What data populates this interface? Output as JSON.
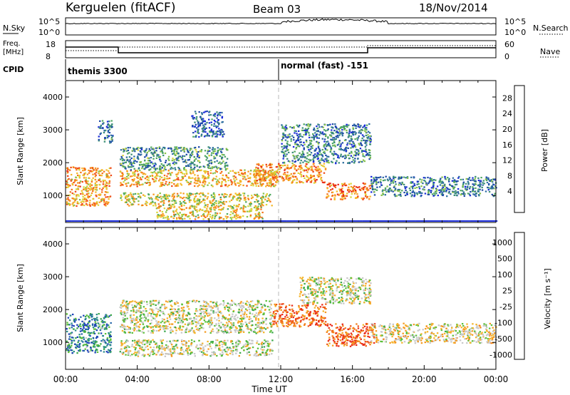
{
  "header": {
    "station": "Kerguelen (fitACF)",
    "beam": "Beam 03",
    "date": "18/Nov/2014"
  },
  "labels": {
    "nsky": "N.Sky",
    "nsky_ticks": [
      "10^5",
      "10^0"
    ],
    "nsearch": "N.Search",
    "nsearch_ticks": [
      "10^5",
      "10^0"
    ],
    "freq_line1": "Freq.",
    "freq_line2": "[MHz]",
    "freq_ticks": [
      "18",
      "8"
    ],
    "nave": "Nave",
    "nave_ticks": [
      "60",
      "0"
    ],
    "cpid": "CPID",
    "cpid_mode1": "themis 3300",
    "cpid_mode2": "normal (fast) -151"
  },
  "chart_data": [
    {
      "type": "heatmap",
      "panel": "power",
      "ylabel": "Slant Range [km]",
      "xlabel": "",
      "x_ticks": [
        "00:00",
        "04:00",
        "08:00",
        "12:00",
        "16:00",
        "20:00",
        "00:00"
      ],
      "y_ticks": [
        1000,
        2000,
        3000,
        4000
      ],
      "ylim": [
        180,
        4500
      ],
      "colorbar": {
        "label": "Power [dB]",
        "ticks": [
          "4",
          "8",
          "12",
          "16",
          "20",
          "24",
          "28"
        ],
        "colors": [
          "#1a2bd9",
          "#1f4aa8",
          "#2f6fa0",
          "#3d8f78",
          "#4fa860",
          "#88c24a",
          "#d9d63a",
          "#f5b92a",
          "#f79a1f",
          "#f5741a",
          "#f04a17",
          "#e8281a"
        ]
      },
      "regions": [
        {
          "t0": 0.0,
          "t1": 2.5,
          "r0": 700,
          "r1": 1900,
          "level": 0.7
        },
        {
          "t0": 1.8,
          "t1": 2.6,
          "r0": 2600,
          "r1": 3300,
          "level": 0.2
        },
        {
          "t0": 3.0,
          "t1": 11.8,
          "r0": 1300,
          "r1": 1800,
          "level": 0.65
        },
        {
          "t0": 3.0,
          "t1": 9.0,
          "r0": 1800,
          "r1": 2500,
          "level": 0.3
        },
        {
          "t0": 3.0,
          "t1": 11.5,
          "r0": 700,
          "r1": 1100,
          "level": 0.55
        },
        {
          "t0": 5.0,
          "t1": 11.0,
          "r0": 300,
          "r1": 700,
          "level": 0.6
        },
        {
          "t0": 10.5,
          "t1": 14.5,
          "r0": 1400,
          "r1": 2000,
          "level": 0.75
        },
        {
          "t0": 12.0,
          "t1": 17.0,
          "r0": 2000,
          "r1": 3200,
          "level": 0.25
        },
        {
          "t0": 14.5,
          "t1": 17.0,
          "r0": 900,
          "r1": 1400,
          "level": 0.8
        },
        {
          "t0": 17.0,
          "t1": 24.0,
          "r0": 1000,
          "r1": 1600,
          "level": 0.25
        },
        {
          "t0": 7.0,
          "t1": 8.8,
          "r0": 2800,
          "r1": 3600,
          "level": 0.15
        }
      ]
    },
    {
      "type": "heatmap",
      "panel": "velocity",
      "ylabel": "Slant Range [km]",
      "xlabel": "Time UT",
      "x_ticks": [
        "00:00",
        "04:00",
        "08:00",
        "12:00",
        "16:00",
        "20:00",
        "00:00"
      ],
      "y_ticks": [
        1000,
        2000,
        3000,
        4000
      ],
      "ylim": [
        180,
        4500
      ],
      "colorbar": {
        "label": "Velocity [m s⁻¹]",
        "ticks": [
          "1000",
          "500",
          "100",
          "25",
          "-25",
          "-100",
          "-500",
          "-1000"
        ],
        "colors": [
          "#1a3fb8",
          "#2566a8",
          "#2d8f8a",
          "#3aa84a",
          "#5cc03a",
          "#c8c8c8",
          "#c8c8c8",
          "#f5b42a",
          "#f59a1f",
          "#f27d18",
          "#ef5a15",
          "#ea2a17"
        ]
      },
      "regions": [
        {
          "t0": 0.0,
          "t1": 2.5,
          "r0": 700,
          "r1": 1900,
          "level": 0.2
        },
        {
          "t0": 3.0,
          "t1": 11.5,
          "r0": 1300,
          "r1": 2300,
          "level": 0.5
        },
        {
          "t0": 3.0,
          "t1": 11.5,
          "r0": 600,
          "r1": 1100,
          "level": 0.5
        },
        {
          "t0": 11.5,
          "t1": 14.5,
          "r0": 1500,
          "r1": 2200,
          "level": 0.85
        },
        {
          "t0": 14.5,
          "t1": 17.2,
          "r0": 900,
          "r1": 1600,
          "level": 0.85
        },
        {
          "t0": 13.0,
          "t1": 17.0,
          "r0": 2200,
          "r1": 3000,
          "level": 0.5
        },
        {
          "t0": 17.0,
          "t1": 24.0,
          "r0": 1000,
          "r1": 1600,
          "level": 0.55
        }
      ]
    }
  ]
}
